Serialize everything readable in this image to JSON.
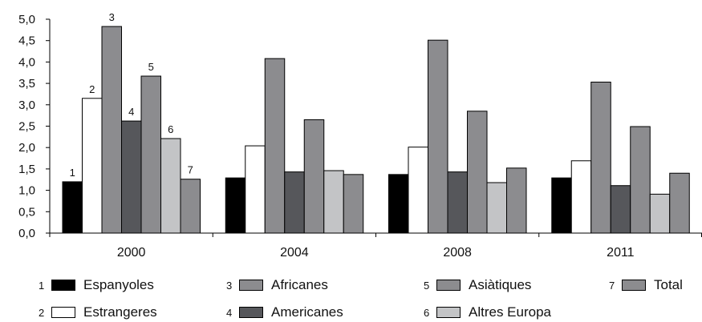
{
  "chart_data": {
    "type": "bar",
    "categories": [
      "2000",
      "2004",
      "2008",
      "2011"
    ],
    "y_ticks": [
      "0,0",
      "0,5",
      "1,0",
      "1,5",
      "2,0",
      "2,5",
      "3,0",
      "3,5",
      "4,0",
      "4,5",
      "5,0"
    ],
    "ylim": [
      0,
      5
    ],
    "grid": false,
    "legend_placement": "bottom",
    "series": [
      {
        "number": "1",
        "name": "Espanyoles",
        "color": "#000000",
        "values": [
          1.2,
          1.29,
          1.37,
          1.29
        ]
      },
      {
        "number": "2",
        "name": "Estrangeres",
        "color": "#ffffff",
        "values": [
          3.15,
          2.04,
          2.01,
          1.69
        ]
      },
      {
        "number": "3",
        "name": "Africanes",
        "color": "#8c8c8f",
        "values": [
          4.83,
          4.08,
          4.51,
          3.53
        ]
      },
      {
        "number": "4",
        "name": "Americanes",
        "color": "#56575b",
        "values": [
          2.62,
          1.43,
          1.43,
          1.11
        ]
      },
      {
        "number": "5",
        "name": "Asiàtiques",
        "color": "#8c8c8f",
        "values": [
          3.67,
          2.65,
          2.85,
          2.49
        ]
      },
      {
        "number": "6",
        "name": "Altres Europa",
        "color": "#c3c4c6",
        "values": [
          2.21,
          1.46,
          1.18,
          0.91
        ]
      },
      {
        "number": "7",
        "name": "Total",
        "color": "#8c8c8f",
        "values": [
          1.26,
          1.37,
          1.52,
          1.4
        ]
      }
    ],
    "bar_number_labels_category": "2000"
  }
}
